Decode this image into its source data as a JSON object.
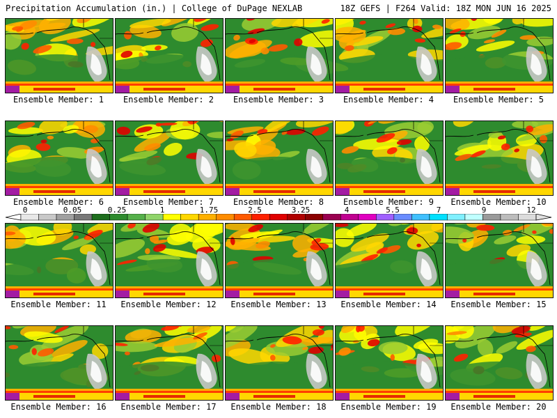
{
  "header": {
    "title": "Precipitation Accumulation (in.) | College of DuPage NEXLAB",
    "run_info": "18Z GEFS | F264 Valid: 18Z MON JUN 16 2025"
  },
  "members": [
    "Ensemble Member: 1",
    "Ensemble Member: 2",
    "Ensemble Member: 3",
    "Ensemble Member: 4",
    "Ensemble Member: 5",
    "Ensemble Member: 6",
    "Ensemble Member: 7",
    "Ensemble Member: 8",
    "Ensemble Member: 9",
    "Ensemble Member: 10",
    "Ensemble Member: 11",
    "Ensemble Member: 12",
    "Ensemble Member: 13",
    "Ensemble Member: 14",
    "Ensemble Member: 15",
    "Ensemble Member: 16",
    "Ensemble Member: 17",
    "Ensemble Member: 18",
    "Ensemble Member: 19",
    "Ensemble Member: 20"
  ],
  "colorbar": {
    "labels": [
      "0",
      "0.05",
      "0.25",
      "1",
      "1.75",
      "2.5",
      "3.25",
      "4",
      "5.5",
      "7",
      "9",
      "12"
    ],
    "colors": [
      "#e8e8e8",
      "#c8c8c8",
      "#a0a0a0",
      "#787878",
      "#1e6e1e",
      "#2e8b2e",
      "#55b04a",
      "#8fd46a",
      "#ffff00",
      "#ffd700",
      "#ffb000",
      "#ff8c00",
      "#ff5a00",
      "#ff2000",
      "#e00000",
      "#b00000",
      "#8b0000",
      "#9a0050",
      "#c00090",
      "#e000c0",
      "#a060ff",
      "#6a8cff",
      "#40c0ff",
      "#00e0ff",
      "#80f0ff",
      "#c0ffff",
      "#9a9a9a",
      "#bcbcbc",
      "#dcdcdc"
    ]
  }
}
